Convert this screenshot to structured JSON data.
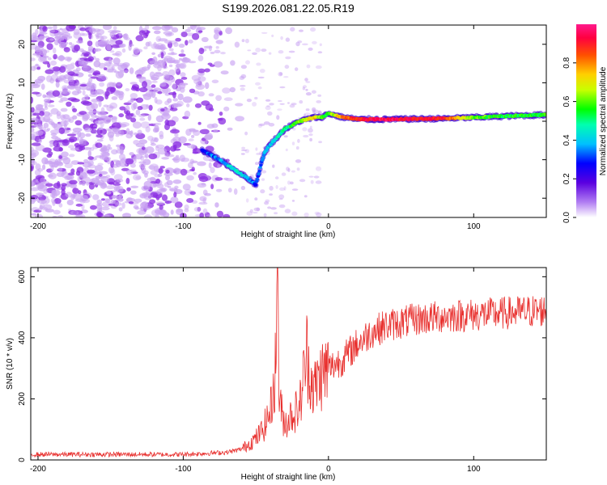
{
  "title": "S199.2026.081.22.05.R19",
  "colors": {
    "snr_line": "#e8302e",
    "axis": "#000000",
    "noise_purple": "#8a2be2",
    "noise_light": "#c9a3f2"
  },
  "chart_data": [
    {
      "type": "heatmap",
      "name": "spectrogram",
      "xlabel": "Height of straight line (km)",
      "ylabel": "Frequency (Hz)",
      "xlim": [
        -205,
        150
      ],
      "ylim": [
        -25,
        25
      ],
      "xticks": [
        -200,
        -100,
        0,
        100
      ],
      "xtick_labels": [
        "-200",
        "-100",
        "0",
        "100"
      ],
      "yticks": [
        -20,
        -10,
        0,
        10,
        20
      ],
      "ytick_labels": [
        "-20",
        "-10",
        "0",
        "10",
        "20"
      ],
      "noise_region_x": [
        -205,
        -55
      ],
      "trace": {
        "x": [
          -87,
          -75,
          -65,
          -55,
          -50,
          -47,
          -44,
          -40,
          -35,
          -30,
          -25,
          -20,
          -15,
          -10,
          -5,
          0,
          5,
          10,
          15,
          20,
          40,
          60,
          80,
          100,
          120,
          150
        ],
        "y": [
          -7.5,
          -10,
          -12.5,
          -15,
          -16.5,
          -12,
          -8,
          -6,
          -4,
          -2,
          -1,
          0,
          0.5,
          1,
          1,
          2,
          1.5,
          1,
          0.8,
          0.5,
          0.5,
          0.6,
          0.7,
          1,
          1.3,
          1.7
        ],
        "amplitude": [
          0.3,
          0.35,
          0.45,
          0.4,
          0.3,
          0.3,
          0.35,
          0.4,
          0.45,
          0.5,
          0.55,
          0.6,
          0.7,
          0.75,
          0.6,
          0.55,
          0.7,
          0.8,
          0.85,
          0.9,
          0.95,
          0.9,
          0.9,
          0.6,
          0.55,
          0.55
        ]
      }
    },
    {
      "type": "colorbar",
      "name": "colorbar",
      "label": "Normalized spectral amplitude",
      "range": [
        0,
        1
      ],
      "ticks": [
        0.0,
        0.2,
        0.4,
        0.6,
        0.8
      ],
      "tick_labels": [
        "0.0",
        "0.2",
        "0.4",
        "0.6",
        "0.8"
      ]
    },
    {
      "type": "line",
      "name": "snr",
      "xlabel": "Height of straight line (km)",
      "ylabel": "SNR (10 * v/v)",
      "xlim": [
        -205,
        150
      ],
      "ylim": [
        0,
        630
      ],
      "xticks": [
        -200,
        -100,
        0,
        100
      ],
      "xtick_labels": [
        "-200",
        "-100",
        "0",
        "100"
      ],
      "yticks": [
        0,
        200,
        400,
        600
      ],
      "ytick_labels": [
        "0",
        "200",
        "400",
        "600"
      ],
      "series": [
        {
          "name": "SNR",
          "x": [
            -205,
            -150,
            -100,
            -70,
            -60,
            -50,
            -45,
            -40,
            -38,
            -36,
            -35,
            -34,
            -32,
            -30,
            -25,
            -20,
            -15,
            -12,
            -10,
            -5,
            0,
            10,
            20,
            30,
            40,
            60,
            80,
            100,
            120,
            150
          ],
          "y": [
            18,
            18,
            18,
            25,
            35,
            70,
            100,
            160,
            230,
            330,
            630,
            200,
            150,
            120,
            150,
            170,
            350,
            270,
            230,
            280,
            300,
            330,
            380,
            420,
            440,
            460,
            470,
            475,
            480,
            490
          ]
        }
      ]
    }
  ]
}
